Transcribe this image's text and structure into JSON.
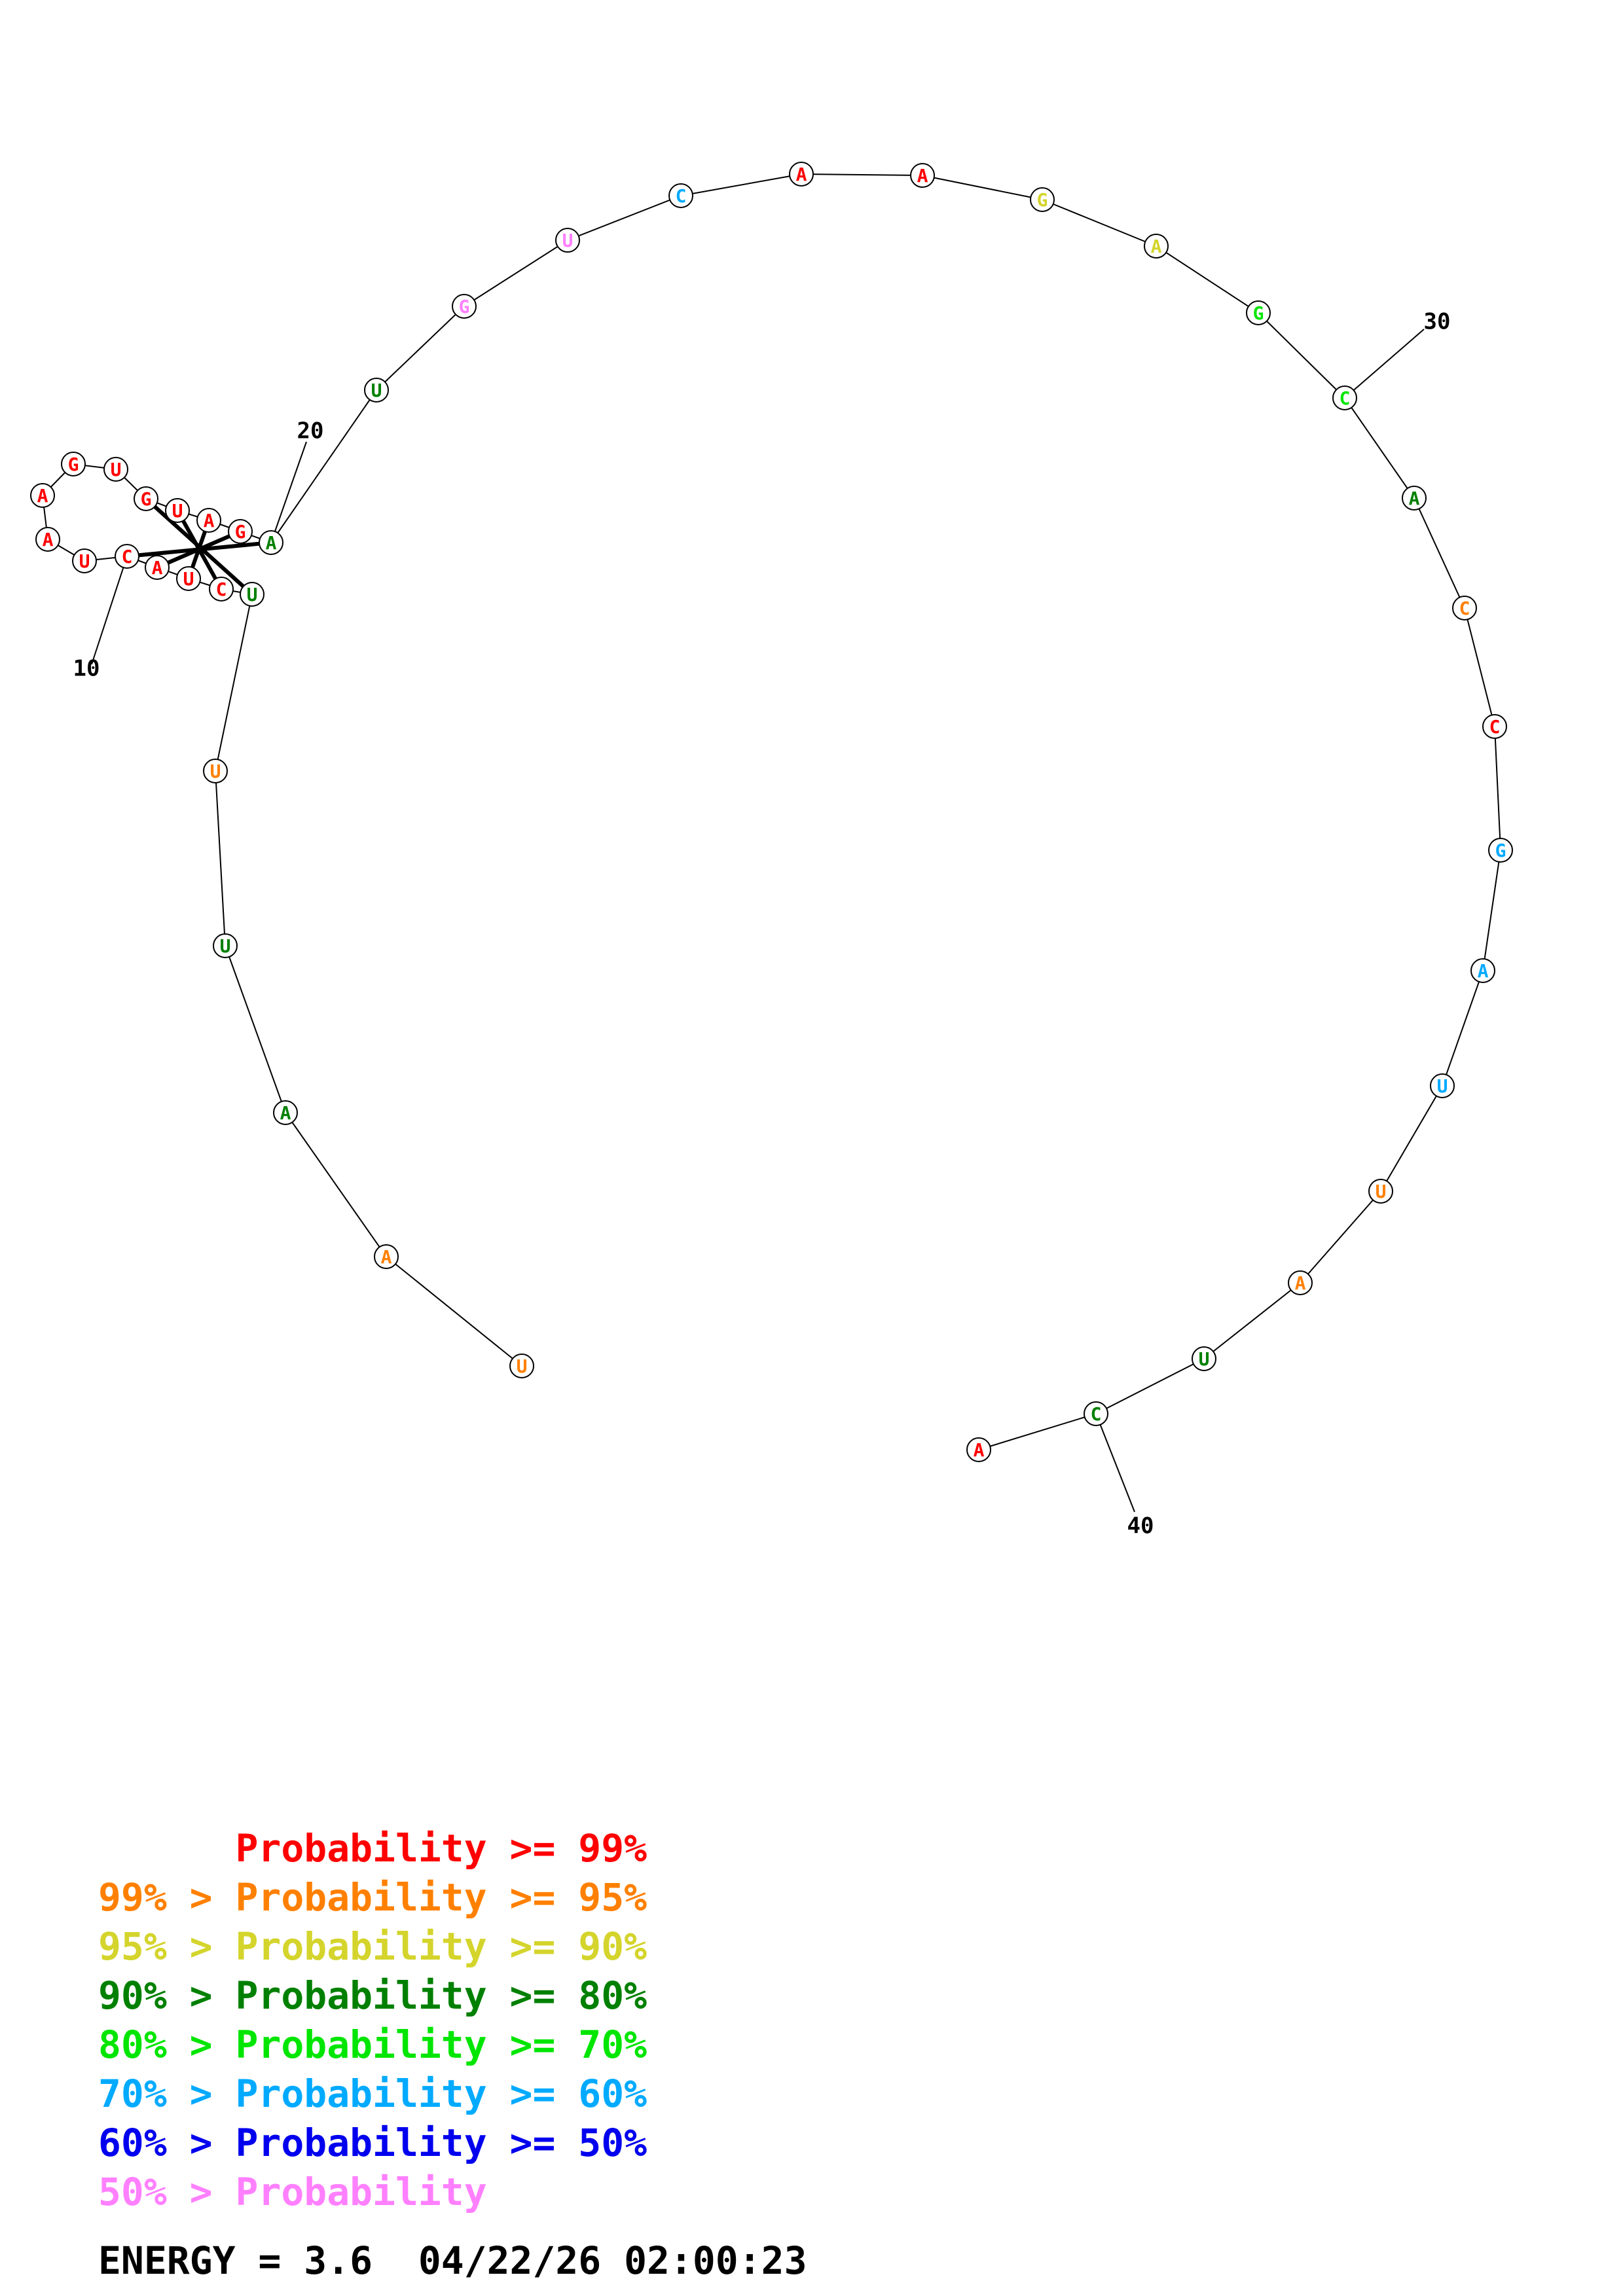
{
  "colors": {
    "p99": "#ff0000",
    "p95": "#ff8000",
    "p90": "#d4d42c",
    "p80": "#008000",
    "p70": "#00e600",
    "p60": "#00aaff",
    "p50": "#0000ee",
    "plow": "#ff80ff"
  },
  "nucleotides": [
    {
      "index": 1,
      "base": "U",
      "prob_class": "p95"
    },
    {
      "index": 2,
      "base": "A",
      "prob_class": "p95"
    },
    {
      "index": 3,
      "base": "A",
      "prob_class": "p80"
    },
    {
      "index": 4,
      "base": "U",
      "prob_class": "p80"
    },
    {
      "index": 5,
      "base": "U",
      "prob_class": "p95"
    },
    {
      "index": 6,
      "base": "U",
      "prob_class": "p80"
    },
    {
      "index": 7,
      "base": "C",
      "prob_class": "p99"
    },
    {
      "index": 8,
      "base": "U",
      "prob_class": "p99"
    },
    {
      "index": 9,
      "base": "A",
      "prob_class": "p99"
    },
    {
      "index": 10,
      "base": "C",
      "prob_class": "p99"
    },
    {
      "index": 11,
      "base": "U",
      "prob_class": "p99"
    },
    {
      "index": 12,
      "base": "A",
      "prob_class": "p99"
    },
    {
      "index": 13,
      "base": "A",
      "prob_class": "p99"
    },
    {
      "index": 14,
      "base": "G",
      "prob_class": "p99"
    },
    {
      "index": 15,
      "base": "U",
      "prob_class": "p99"
    },
    {
      "index": 16,
      "base": "G",
      "prob_class": "p99"
    },
    {
      "index": 17,
      "base": "U",
      "prob_class": "p99"
    },
    {
      "index": 18,
      "base": "A",
      "prob_class": "p99"
    },
    {
      "index": 19,
      "base": "G",
      "prob_class": "p99"
    },
    {
      "index": 20,
      "base": "A",
      "prob_class": "p80"
    },
    {
      "index": 21,
      "base": "U",
      "prob_class": "p80"
    },
    {
      "index": 22,
      "base": "G",
      "prob_class": "plow"
    },
    {
      "index": 23,
      "base": "U",
      "prob_class": "plow"
    },
    {
      "index": 24,
      "base": "C",
      "prob_class": "p60"
    },
    {
      "index": 25,
      "base": "A",
      "prob_class": "p99"
    },
    {
      "index": 26,
      "base": "A",
      "prob_class": "p99"
    },
    {
      "index": 27,
      "base": "G",
      "prob_class": "p90"
    },
    {
      "index": 28,
      "base": "A",
      "prob_class": "p90"
    },
    {
      "index": 29,
      "base": "G",
      "prob_class": "p70"
    },
    {
      "index": 30,
      "base": "C",
      "prob_class": "p70"
    },
    {
      "index": 31,
      "base": "A",
      "prob_class": "p80"
    },
    {
      "index": 32,
      "base": "C",
      "prob_class": "p95"
    },
    {
      "index": 33,
      "base": "C",
      "prob_class": "p99"
    },
    {
      "index": 34,
      "base": "G",
      "prob_class": "p60"
    },
    {
      "index": 35,
      "base": "A",
      "prob_class": "p60"
    },
    {
      "index": 36,
      "base": "U",
      "prob_class": "p60"
    },
    {
      "index": 37,
      "base": "U",
      "prob_class": "p95"
    },
    {
      "index": 38,
      "base": "A",
      "prob_class": "p95"
    },
    {
      "index": 39,
      "base": "U",
      "prob_class": "p80"
    },
    {
      "index": 40,
      "base": "C",
      "prob_class": "p80"
    },
    {
      "index": 41,
      "base": "A",
      "prob_class": "p99"
    }
  ],
  "base_pairs": [
    [
      10,
      20
    ],
    [
      9,
      19
    ],
    [
      8,
      18
    ],
    [
      7,
      17
    ],
    [
      6,
      16
    ]
  ],
  "position_labels": [
    {
      "index": 10,
      "text": "10"
    },
    {
      "index": 20,
      "text": "20"
    },
    {
      "index": 30,
      "text": "30"
    },
    {
      "index": 40,
      "text": "40"
    }
  ],
  "legend": [
    {
      "text": "      Probability >= 99%",
      "color": "p99"
    },
    {
      "text": "99% > Probability >= 95%",
      "color": "p95"
    },
    {
      "text": "95% > Probability >= 90%",
      "color": "p90"
    },
    {
      "text": "90% > Probability >= 80%",
      "color": "p80"
    },
    {
      "text": "80% > Probability >= 70%",
      "color": "p70"
    },
    {
      "text": "70% > Probability >= 60%",
      "color": "p60"
    },
    {
      "text": "60% > Probability >= 50%",
      "color": "p50"
    },
    {
      "text": "50% > Probability",
      "color": "plow"
    }
  ],
  "energy_text": "ENERGY = 3.6  04/22/26 02:00:23"
}
